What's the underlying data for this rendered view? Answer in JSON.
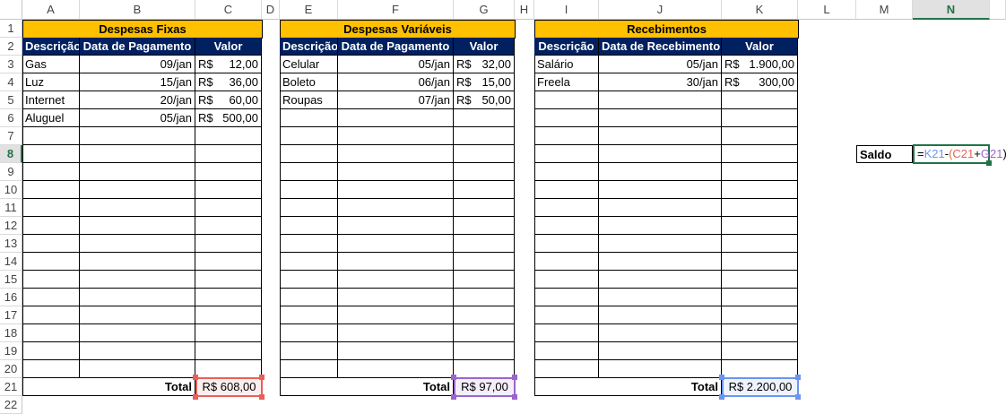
{
  "columns": [
    "A",
    "B",
    "C",
    "D",
    "E",
    "F",
    "G",
    "H",
    "I",
    "J",
    "K",
    "L",
    "M",
    "N"
  ],
  "rows": [
    "1",
    "2",
    "3",
    "4",
    "5",
    "6",
    "7",
    "8",
    "9",
    "10",
    "11",
    "12",
    "13",
    "14",
    "15",
    "16",
    "17",
    "18",
    "19",
    "20",
    "21",
    "22"
  ],
  "active_cell": "N8",
  "tables": [
    {
      "title": "Despesas Fixas",
      "headers": [
        "Descrição",
        "Data de Pagamento",
        "Valor"
      ],
      "rows": [
        {
          "desc": "Gas",
          "date": "09/jan",
          "cur": "R$",
          "amt": "12,00"
        },
        {
          "desc": "Luz",
          "date": "15/jan",
          "cur": "R$",
          "amt": "36,00"
        },
        {
          "desc": "Internet",
          "date": "20/jan",
          "cur": "R$",
          "amt": "60,00"
        },
        {
          "desc": "Aluguel",
          "date": "05/jan",
          "cur": "R$",
          "amt": "500,00"
        }
      ],
      "total_label": "Total",
      "total": "R$ 608,00",
      "highlight_color": "#e8605a",
      "highlight_fill": "#fdeeee"
    },
    {
      "title": "Despesas Variáveis",
      "headers": [
        "Descrição",
        "Data de Pagamento",
        "Valor"
      ],
      "rows": [
        {
          "desc": "Celular",
          "date": "05/jan",
          "cur": "R$",
          "amt": "32,00"
        },
        {
          "desc": "Boleto",
          "date": "06/jan",
          "cur": "R$",
          "amt": "15,00"
        },
        {
          "desc": "Roupas",
          "date": "07/jan",
          "cur": "R$",
          "amt": "50,00"
        }
      ],
      "total_label": "Total",
      "total": "R$ 97,00",
      "highlight_color": "#9966cc",
      "highlight_fill": "#f3eef9"
    },
    {
      "title": "Recebimentos",
      "headers": [
        "Descrição",
        "Data de Recebimento",
        "Valor"
      ],
      "rows": [
        {
          "desc": "Salário",
          "date": "05/jan",
          "cur": "R$",
          "amt": "1.900,00"
        },
        {
          "desc": "Freela",
          "date": "30/jan",
          "cur": "R$",
          "amt": "300,00"
        }
      ],
      "total_label": "Total",
      "total": "R$ 2.200,00",
      "highlight_color": "#6b95ef",
      "highlight_fill": "#eef3fd"
    }
  ],
  "saldo": {
    "label": "Saldo",
    "formula": {
      "eq": "=",
      "ref1": "K21",
      "minus": "-",
      "open": "(",
      "ref2": "C21",
      "plus": "+",
      "ref3": "G21",
      "close": ")"
    },
    "colors": {
      "ref1": "#6b95ef",
      "ref2": "#e8605a",
      "ref3": "#9966cc",
      "paren": "#e07030",
      "border": "#217346"
    }
  }
}
